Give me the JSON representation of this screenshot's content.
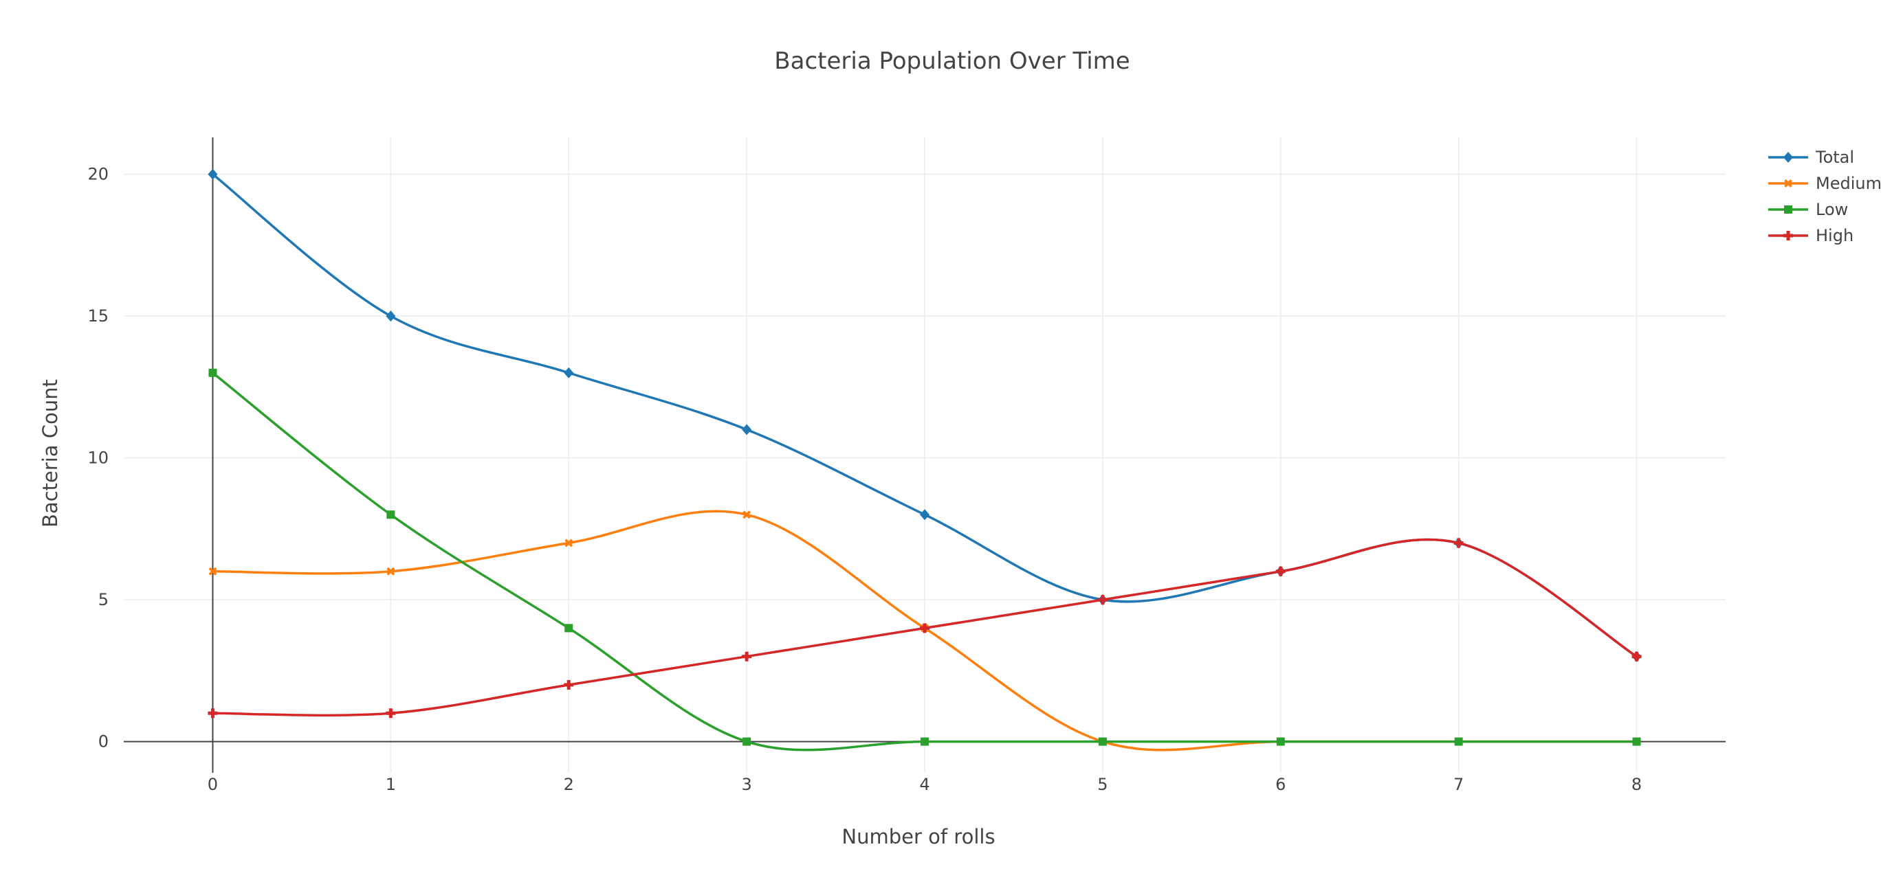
{
  "chart_data": {
    "type": "line",
    "title": "Bacteria Population Over Time",
    "xlabel": "Number of rolls",
    "ylabel": "Bacteria Count",
    "x": [
      0,
      1,
      2,
      3,
      4,
      5,
      6,
      7,
      8
    ],
    "xlim": [
      -0.5,
      8.5
    ],
    "ylim": [
      -1.1,
      21.3
    ],
    "xticks": [
      "0",
      "1",
      "2",
      "3",
      "4",
      "5",
      "6",
      "7",
      "8"
    ],
    "yticks": [
      "0",
      "5",
      "10",
      "15",
      "20"
    ],
    "grid": true,
    "legend_position": "top-right",
    "series": [
      {
        "name": "Total",
        "color": "#1f77b4",
        "marker": "diamond",
        "values": [
          20,
          15,
          13,
          11,
          8,
          5,
          6,
          7,
          3
        ]
      },
      {
        "name": "Medium",
        "color": "#ff7f0e",
        "marker": "x",
        "values": [
          6,
          6,
          7,
          8,
          4,
          0,
          0,
          0,
          0
        ]
      },
      {
        "name": "Low",
        "color": "#2ca02c",
        "marker": "square",
        "values": [
          13,
          8,
          4,
          0,
          0,
          0,
          0,
          0,
          0
        ]
      },
      {
        "name": "High",
        "color": "#d62728",
        "marker": "cross",
        "values": [
          1,
          1,
          2,
          3,
          4,
          5,
          6,
          7,
          3
        ]
      }
    ]
  }
}
